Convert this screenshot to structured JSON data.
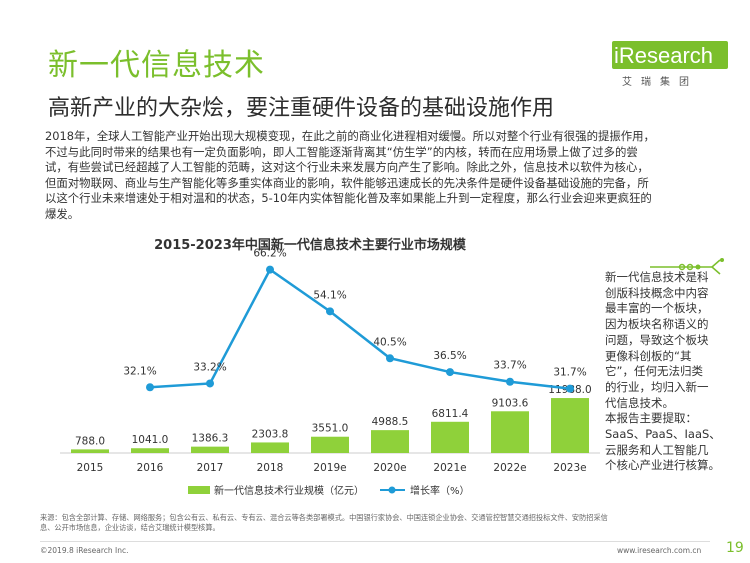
{
  "header": {
    "title": "新一代信息技术",
    "subtitle": "高新产业的大杂烩，要注重硬件设备的基础设施作用"
  },
  "logo": {
    "brand": "iResearch",
    "sub": "艾瑞集团"
  },
  "paragraph_lines": [
    "2018年，全球人工智能产业开始出现大规模变现，在此之前的商业化进程相对缓慢。所以对整个行业有很强的提振作用，",
    "不过与此同时带来的结果也有一定负面影响，即人工智能逐渐背离其“仿生学”的内核，转而在应用场景上做了过多的尝",
    "试，有些尝试已经超越了人工智能的范畴，这对这个行业未来发展方向产生了影响。除此之外，信息技术以软件为核心，",
    "但面对物联网、商业与生产智能化等多重实体商业的影响，软件能够迅速成长的先决条件是硬件设备基础设施的完备，所",
    "以这个行业未来增速处于相对温和的状态，5-10年内实体智能化普及率如果能上升到一定程度，那么行业会迎来更疯狂的",
    "爆发。"
  ],
  "side_note_lines": [
    "新一代信息技术是科",
    "创版科技概念中内容",
    "最丰富的一个板块，",
    "因为板块名称语义的",
    "问题，导致这个板块",
    "更像科创板的“其",
    "它”，任何无法归类",
    "的行业，均归入新一",
    "代信息技术。",
    "本报告主要提取：",
    "SaaS、PaaS、IaaS、",
    "云服务和人工智能几",
    "个核心产业进行核算。"
  ],
  "source_lines": [
    "来源：包含全部计算、存储、网络服务；包含公有云、私有云、专有云、混合云等各类部署模式。中国银行家协会、中国连锁企业协会、交通管控智慧交通招投标文件、安防招采信",
    "息、公开市场信息，企业访谈，结合艾瑞统计模型核算。"
  ],
  "footer": {
    "copyright": "©2019.8 iResearch Inc.",
    "website": "www.iresearch.com.cn",
    "page": "19"
  },
  "colors": {
    "accent_green": "#7bbf2c",
    "bar_green": "#8fd13a",
    "line_blue": "#1f9bd7"
  },
  "chart_data": {
    "type": "bar",
    "title": "2015-2023年中国新一代信息技术主要行业市场规模",
    "categories": [
      "2015",
      "2016",
      "2017",
      "2018",
      "2019e",
      "2020e",
      "2021e",
      "2022e",
      "2023e"
    ],
    "series": [
      {
        "name": "新一代信息技术行业规模（亿元）",
        "type": "bar",
        "values": [
          788.0,
          1041.0,
          1386.3,
          2303.8,
          3551.0,
          4988.5,
          6811.4,
          9103.6,
          11988.0
        ],
        "labels": [
          "788.0",
          "1041.0",
          "1386.3",
          "2303.8",
          "3551.0",
          "4988.5",
          "6811.4",
          "9103.6",
          "11988.0"
        ]
      },
      {
        "name": "增长率（%）",
        "type": "line",
        "values": [
          null,
          32.1,
          33.2,
          66.2,
          54.1,
          40.5,
          36.5,
          33.7,
          31.7
        ],
        "labels": [
          "",
          "32.1%",
          "33.2%",
          "66.2%",
          "54.1%",
          "40.5%",
          "36.5%",
          "33.7%",
          "31.7%"
        ]
      }
    ],
    "legend_position": "bottom",
    "grid": false
  }
}
